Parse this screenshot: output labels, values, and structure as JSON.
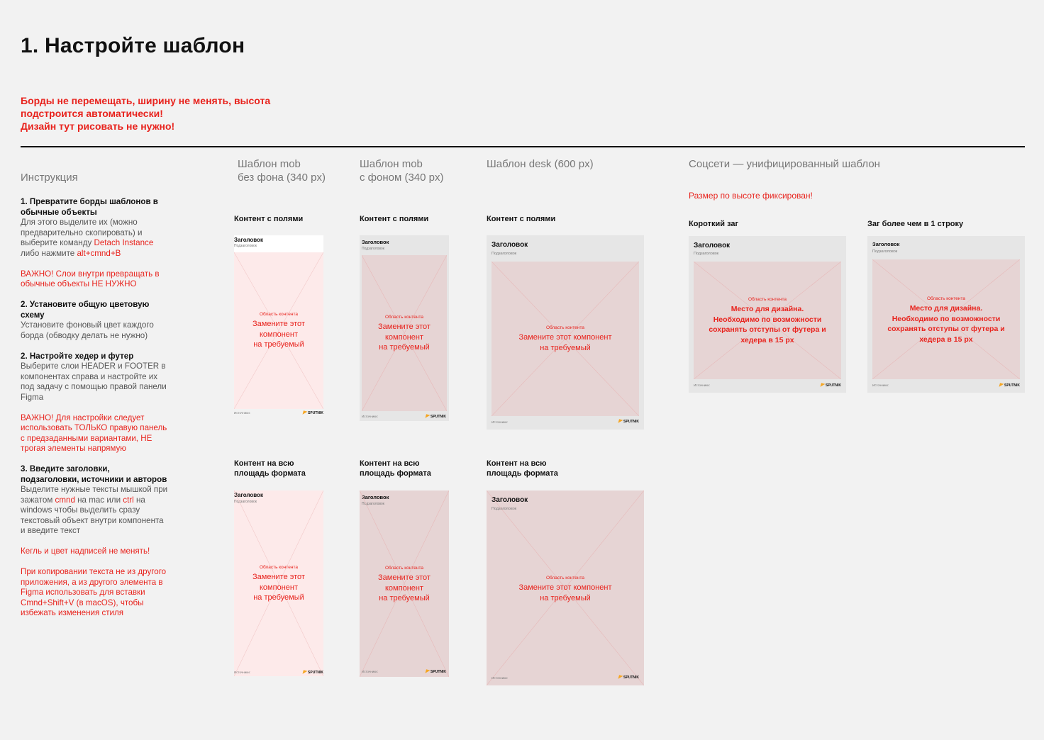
{
  "page": {
    "title": "1. Настройте шаблон",
    "warning": [
      "Борды не перемещать, ширину не менять, высота",
      "подстроится автоматически!",
      "Дизайн тут рисовать не нужно!"
    ]
  },
  "instructions": {
    "heading": "Инструкция",
    "s1_title": "1. Превратите борды шаблонов в обычные объекты",
    "s1_text_a": "Для этого выделите их (можно предварительно скопировать) и выберите команду ",
    "s1_link": "Detach Instance",
    "s1_text_b": " либо нажмите ",
    "s1_keys": "alt+cmnd+B",
    "s1_warn": "ВАЖНО! Слои внутри превращать в обычные объекты НЕ НУЖНО",
    "s2_title": "2. Установите общую цветовую схему",
    "s2_text": "Установите фоновый цвет каждого борда (обводку делать не нужно)",
    "s3_title": "2. Настройте хедер и футер",
    "s3_text": "Выберите слои HEADER и FOOTER в компонентах справа и настройте их под задачу с помощью правой панели Figma",
    "s3_warn": "ВАЖНО! Для настройки следует использовать ТОЛЬКО правую панель с предзаданными вариантами, НЕ трогая элементы напрямую",
    "s4_title": "3. Введите заголовки, подзаголовки, источники и авторов",
    "s4_text_a": "Выделите нужные тексты мышкой при зажатом ",
    "s4_key1": "cmnd",
    "s4_text_b": " на mac или ",
    "s4_key2": "ctrl",
    "s4_text_c": " на windows чтобы выделить сразу текстовый объект внутри компонента и введите текст",
    "s4_warn1": "Кегль и цвет надписей не менять!",
    "s4_warn2": "При копировании текста не из другого приложения, а из другого элемента в Figma использовать для вставки Cmnd+Shift+V (в macOS), чтобы избежать изменения стиля"
  },
  "columns": {
    "mob_nobg": [
      "Шаблон mob",
      "без фона (340 px)"
    ],
    "mob_bg": [
      "Шаблон mob",
      "с фоном (340 px)"
    ],
    "desk": "Шаблон desk (600 px)",
    "social": "Соцсети — унифицированный шаблон",
    "social_note": "Размер по высоте фиксирован!"
  },
  "labels": {
    "with_margins": "Контент с полями",
    "full_area": [
      "Контент на всю",
      "площадь формата"
    ],
    "short_title": "Короткий заг",
    "long_title": "Заг более чем в 1 строку"
  },
  "card": {
    "title": "Заголовок",
    "subtitle": "Подзаголовок",
    "area_label": "Область контента",
    "replace": [
      "Замените этот",
      "компонент",
      "на требуемый"
    ],
    "replace_desk": [
      "Замените этот компонент",
      "на требуемый"
    ],
    "social_text": [
      "Место для дизайна.",
      "Необходимо по возможности",
      "сохранять отступы от футера и",
      "хедера в 15 px"
    ],
    "source": "Источники:",
    "logo": "SPUTNIK"
  },
  "colors": {
    "accent": "#e8231d",
    "bg": "#f2f2f2",
    "card_grey": "#e6e6e6",
    "area_pink": "#e6d4d4",
    "area_light": "#fdeaea",
    "logo_orange": "#f5a623"
  }
}
